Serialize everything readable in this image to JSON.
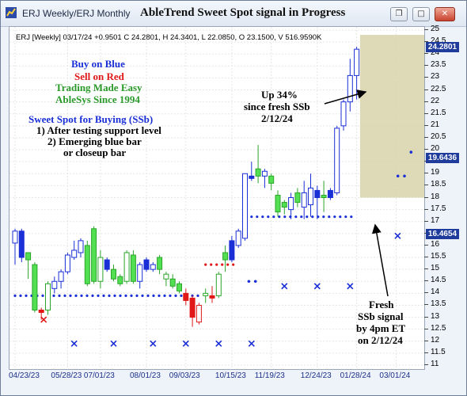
{
  "window": {
    "tabs": [
      {
        "label": "ERJ Weekly/ERJ Monthly"
      }
    ],
    "chart_title": "AbleTrend Sweet Spot signal in Progress",
    "buttons": {
      "restore": "❐",
      "maximize": "□",
      "close": "✕"
    }
  },
  "info_line": "ERJ [Weekly] 03/17/24 +0.9501 C 24.2801, H 24.3401, L 22.0850, O 23.1500, V 516.9590K",
  "annotations": {
    "buy": "Buy on Blue",
    "sell": "Sell on Red",
    "trading": "Trading Made Easy",
    "ablesys": "AbleSys Since 1994",
    "sweet_title": "Sweet Spot for Buying (SSb)",
    "rule1": "1) After testing support level",
    "rule2a": "2) Emerging blue bar",
    "rule2b": "or closeup bar",
    "up1": "Up 34%",
    "up2": "since fresh SSb",
    "up3": "2/12/24",
    "fresh1": "Fresh",
    "fresh2": "SSb signal",
    "fresh3": "by 4pm ET",
    "fresh4": "on 2/12/24"
  },
  "colors": {
    "blue": "#1a2fd6",
    "red": "#e01818",
    "green": "#2aa52a",
    "lightgreen": "#52e052",
    "highlight": "#d8d3aa",
    "tag_blue": "#1f3c9c"
  },
  "chart_data": {
    "type": "candlestick",
    "y_axis": {
      "min": 11,
      "max": 25,
      "ticks": [
        "25",
        "24.5",
        "24",
        "23.5",
        "23",
        "22.5",
        "22",
        "21.5",
        "21",
        "20.5",
        "20",
        "19.5",
        "19",
        "18.5",
        "18",
        "17.5",
        "17",
        "16.5",
        "16",
        "15.5",
        "15",
        "14.5",
        "14",
        "13.5",
        "13",
        "12.5",
        "12",
        "11.5",
        "11"
      ]
    },
    "x_labels": [
      "04/23/23",
      "05/28/23",
      "07/01/23",
      "08/01/23",
      "09/03/23",
      "10/15/23",
      "11/19/23",
      "12/24/23",
      "01/28/24",
      "03/01/24"
    ],
    "price_tags": {
      "blue1": "24.2801",
      "blue2": "19.6436",
      "blue3": "16.4654"
    },
    "bars": [
      {
        "o": 16.1,
        "h": 16.7,
        "l": 15.2,
        "c": 16.6,
        "col": "hollow_blue"
      },
      {
        "o": 16.6,
        "h": 16.7,
        "l": 15.3,
        "c": 15.5,
        "col": "blue"
      },
      {
        "o": 15.4,
        "h": 15.7,
        "l": 14.6,
        "c": 15.7,
        "col": "green"
      },
      {
        "o": 15.2,
        "h": 15.3,
        "l": 13.2,
        "c": 13.3,
        "col": "green"
      },
      {
        "o": 13.3,
        "h": 13.4,
        "l": 12.9,
        "c": 13.2,
        "col": "red"
      },
      {
        "o": 13.3,
        "h": 14.5,
        "l": 13.1,
        "c": 14.4,
        "col": "hollow_green"
      },
      {
        "o": 14.2,
        "h": 14.7,
        "l": 14.0,
        "c": 14.5,
        "col": "hollow_blue"
      },
      {
        "o": 14.5,
        "h": 15.0,
        "l": 14.2,
        "c": 14.9,
        "col": "hollow_blue"
      },
      {
        "o": 14.9,
        "h": 15.7,
        "l": 14.8,
        "c": 15.6,
        "col": "hollow_blue"
      },
      {
        "o": 15.5,
        "h": 16.2,
        "l": 15.4,
        "c": 15.8,
        "col": "hollow_blue"
      },
      {
        "o": 15.7,
        "h": 16.3,
        "l": 15.5,
        "c": 16.2,
        "col": "hollow_blue"
      },
      {
        "o": 16.0,
        "h": 16.2,
        "l": 14.3,
        "c": 14.4,
        "col": "green"
      },
      {
        "o": 14.5,
        "h": 16.8,
        "l": 14.4,
        "c": 16.7,
        "col": "green"
      },
      {
        "o": 15.5,
        "h": 15.8,
        "l": 14.2,
        "c": 14.5,
        "col": "hollow_green"
      },
      {
        "o": 15.4,
        "h": 15.5,
        "l": 14.9,
        "c": 15.0,
        "col": "blue"
      },
      {
        "o": 15.0,
        "h": 15.2,
        "l": 14.5,
        "c": 14.6,
        "col": "green"
      },
      {
        "o": 14.7,
        "h": 14.8,
        "l": 14.3,
        "c": 14.4,
        "col": "green"
      },
      {
        "o": 14.5,
        "h": 15.8,
        "l": 14.4,
        "c": 15.7,
        "col": "hollow_green"
      },
      {
        "o": 15.6,
        "h": 15.8,
        "l": 14.4,
        "c": 14.5,
        "col": "green"
      },
      {
        "o": 14.5,
        "h": 15.3,
        "l": 14.2,
        "c": 15.2,
        "col": "hollow_blue"
      },
      {
        "o": 15.4,
        "h": 15.5,
        "l": 14.9,
        "c": 15.0,
        "col": "blue"
      },
      {
        "o": 15.0,
        "h": 15.3,
        "l": 14.9,
        "c": 15.2,
        "col": "hollow_blue"
      },
      {
        "o": 15.0,
        "h": 15.6,
        "l": 14.8,
        "c": 15.5,
        "col": "green"
      },
      {
        "o": 14.6,
        "h": 14.9,
        "l": 14.3,
        "c": 14.8,
        "col": "hollow_green"
      },
      {
        "o": 14.6,
        "h": 14.8,
        "l": 14.2,
        "c": 14.3,
        "col": "green"
      },
      {
        "o": 14.4,
        "h": 14.5,
        "l": 14.0,
        "c": 14.1,
        "col": "green"
      },
      {
        "o": 14.0,
        "h": 14.2,
        "l": 13.5,
        "c": 13.7,
        "col": "red"
      },
      {
        "o": 13.8,
        "h": 13.9,
        "l": 12.6,
        "c": 13.0,
        "col": "red"
      },
      {
        "o": 12.8,
        "h": 13.6,
        "l": 12.7,
        "c": 13.5,
        "col": "hollow_red"
      },
      {
        "o": 13.9,
        "h": 14.2,
        "l": 13.6,
        "c": 14.0,
        "col": "hollow_green"
      },
      {
        "o": 13.9,
        "h": 14.3,
        "l": 13.6,
        "c": 13.8,
        "col": "red"
      },
      {
        "o": 13.9,
        "h": 14.9,
        "l": 13.8,
        "c": 14.8,
        "col": "hollow_green"
      },
      {
        "o": 15.4,
        "h": 16.0,
        "l": 14.9,
        "c": 15.7,
        "col": "green"
      },
      {
        "o": 15.4,
        "h": 16.4,
        "l": 15.3,
        "c": 16.2,
        "col": "blue"
      },
      {
        "o": 16.0,
        "h": 16.7,
        "l": 15.9,
        "c": 16.6,
        "col": "hollow_blue"
      },
      {
        "o": 16.3,
        "h": 19.0,
        "l": 16.2,
        "c": 19.0,
        "col": "hollow_blue"
      },
      {
        "o": 18.9,
        "h": 19.5,
        "l": 18.7,
        "c": 18.8,
        "col": "blue"
      },
      {
        "o": 18.9,
        "h": 20.2,
        "l": 18.6,
        "c": 19.2,
        "col": "green"
      },
      {
        "o": 19.1,
        "h": 19.2,
        "l": 18.4,
        "c": 18.9,
        "col": "hollow_blue"
      },
      {
        "o": 18.9,
        "h": 19.0,
        "l": 18.3,
        "c": 18.6,
        "col": "green"
      },
      {
        "o": 18.1,
        "h": 18.3,
        "l": 17.2,
        "c": 17.4,
        "col": "green"
      },
      {
        "o": 17.6,
        "h": 17.9,
        "l": 17.3,
        "c": 17.8,
        "col": "green"
      },
      {
        "o": 17.5,
        "h": 18.2,
        "l": 17.1,
        "c": 18.0,
        "col": "hollow_blue"
      },
      {
        "o": 18.2,
        "h": 18.4,
        "l": 17.6,
        "c": 17.8,
        "col": "green"
      },
      {
        "o": 17.6,
        "h": 18.7,
        "l": 17.1,
        "c": 18.2,
        "col": "hollow_blue"
      },
      {
        "o": 17.7,
        "h": 19.0,
        "l": 17.2,
        "c": 18.4,
        "col": "hollow_blue"
      },
      {
        "o": 18.0,
        "h": 18.5,
        "l": 17.1,
        "c": 18.3,
        "col": "blue"
      },
      {
        "o": 18.0,
        "h": 18.7,
        "l": 17.4,
        "c": 18.1,
        "col": "green"
      },
      {
        "o": 18.0,
        "h": 18.4,
        "l": 17.9,
        "c": 18.3,
        "col": "blue"
      },
      {
        "o": 18.2,
        "h": 21.0,
        "l": 18.1,
        "c": 20.9,
        "col": "hollow_blue"
      },
      {
        "o": 21.0,
        "h": 22.1,
        "l": 20.8,
        "c": 22.0,
        "col": "hollow_blue"
      },
      {
        "o": 22.0,
        "h": 23.8,
        "l": 21.6,
        "c": 23.1,
        "col": "hollow_blue"
      },
      {
        "o": 23.1,
        "h": 24.3,
        "l": 22.1,
        "c": 24.2,
        "col": "hollow_blue"
      }
    ]
  }
}
